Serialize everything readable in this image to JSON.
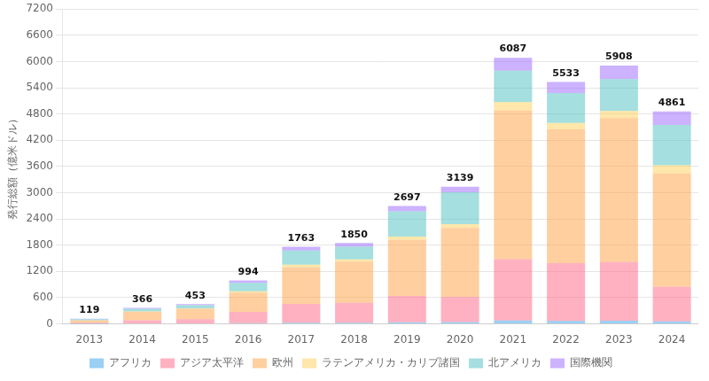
{
  "chart_data": {
    "type": "bar",
    "stacked": true,
    "ylabel": "発行総額（億米ドル）",
    "categories": [
      "2013",
      "2014",
      "2015",
      "2016",
      "2017",
      "2018",
      "2019",
      "2020",
      "2021",
      "2022",
      "2023",
      "2024"
    ],
    "series": [
      {
        "name": "アフリカ",
        "values": [
          3,
          10,
          12,
          18,
          28,
          25,
          40,
          45,
          80,
          70,
          75,
          60
        ]
      },
      {
        "name": "アジア太平洋",
        "values": [
          22,
          75,
          95,
          260,
          430,
          460,
          600,
          570,
          1400,
          1320,
          1340,
          790
        ]
      },
      {
        "name": "欧州",
        "values": [
          58,
          195,
          240,
          440,
          840,
          940,
          1280,
          1580,
          3400,
          3060,
          3290,
          2590
        ]
      },
      {
        "name": "ラテンアメリカ・カリブ諸国",
        "values": [
          2,
          8,
          10,
          28,
          58,
          50,
          75,
          85,
          190,
          145,
          163,
          188
        ]
      },
      {
        "name": "北アメリカ",
        "values": [
          24,
          58,
          68,
          195,
          320,
          290,
          580,
          730,
          720,
          685,
          730,
          920
        ]
      },
      {
        "name": "国際機関",
        "values": [
          10,
          20,
          28,
          53,
          87,
          85,
          122,
          129,
          297,
          253,
          310,
          313
        ]
      }
    ],
    "totals": [
      119,
      366,
      453,
      994,
      1763,
      1850,
      2697,
      3139,
      6087,
      5533,
      5908,
      4861
    ],
    "ylim": [
      0,
      7200
    ],
    "yticks": [
      0,
      600,
      1200,
      1800,
      2400,
      3000,
      3600,
      4200,
      4800,
      5400,
      6000,
      6600,
      7200
    ],
    "grid": true,
    "legend": "bottom"
  }
}
